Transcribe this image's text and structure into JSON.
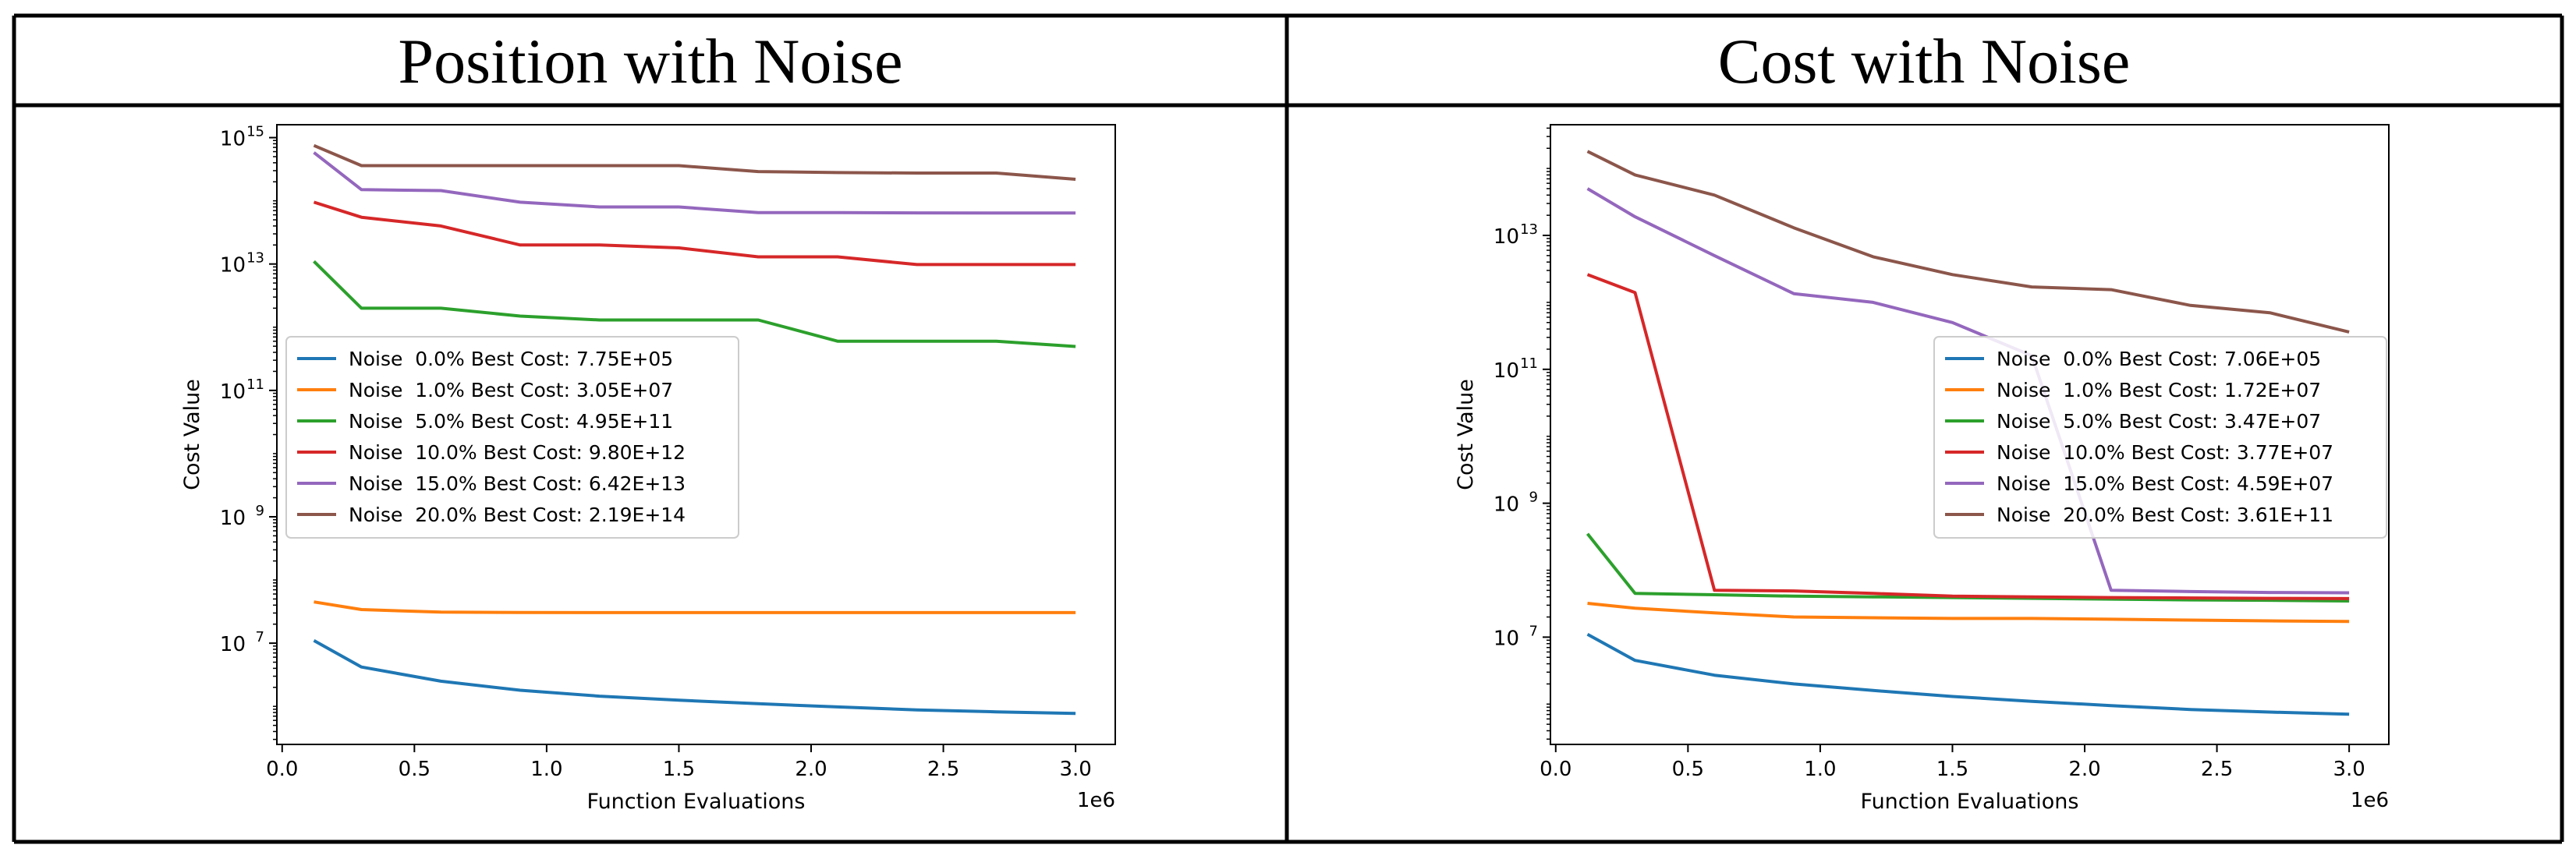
{
  "table": {
    "left_header": "Position with Noise",
    "right_header": "Cost with Noise"
  },
  "chart_data": [
    {
      "type": "line",
      "title": "",
      "header": "Position with Noise",
      "xlabel": "Function Evaluations",
      "ylabel": "Cost Value",
      "x_offset_label": "1e6",
      "yscale": "log",
      "xlim": [
        -0.02,
        3.15
      ],
      "ylim": [
        250000,
        1600000000000000.0
      ],
      "xticks": [
        0.0,
        0.5,
        1.0,
        1.5,
        2.0,
        2.5,
        3.0
      ],
      "xtick_labels": [
        "0.0",
        "0.5",
        "1.0",
        "1.5",
        "2.0",
        "2.5",
        "3.0"
      ],
      "yticks": [
        {
          "value": 10000000.0,
          "base": "10",
          "exp": "7"
        },
        {
          "value": 1000000000.0,
          "base": "10",
          "exp": "9"
        },
        {
          "value": 100000000000.0,
          "base": "10",
          "exp": "11"
        },
        {
          "value": 10000000000000.0,
          "base": "10",
          "exp": "13"
        },
        {
          "value": 1000000000000000.0,
          "base": "10",
          "exp": "15"
        }
      ],
      "legend_position": "center-left",
      "x": [
        0.12,
        0.3,
        0.6,
        0.9,
        1.2,
        1.5,
        1.8,
        2.1,
        2.4,
        2.7,
        3.0
      ],
      "series": [
        {
          "name": "Noise  0.0% Best Cost: 7.75E+05",
          "color": "#1f77b4",
          "values": [
            11000000.0,
            4200000.0,
            2500000.0,
            1800000.0,
            1450000.0,
            1250000.0,
            1100000.0,
            980000.0,
            880000.0,
            820000.0,
            775000.0
          ]
        },
        {
          "name": "Noise  1.0% Best Cost: 3.05E+07",
          "color": "#ff7f0e",
          "values": [
            45000000.0,
            34000000.0,
            31000000.0,
            30600000.0,
            30500000.0,
            30500000.0,
            30500000.0,
            30500000.0,
            30500000.0,
            30500000.0,
            30500000.0
          ]
        },
        {
          "name": "Noise  5.0% Best Cost: 4.95E+11",
          "color": "#2ca02c",
          "values": [
            11000000000000.0,
            2000000000000.0,
            2000000000000.0,
            1500000000000.0,
            1300000000000.0,
            1300000000000.0,
            1300000000000.0,
            600000000000.0,
            600000000000.0,
            600000000000.0,
            495000000000.0
          ]
        },
        {
          "name": "Noise  10.0% Best Cost: 9.80E+12",
          "color": "#d62728",
          "values": [
            95000000000000.0,
            55000000000000.0,
            40000000000000.0,
            20000000000000.0,
            20000000000000.0,
            18000000000000.0,
            13000000000000.0,
            13000000000000.0,
            9800000000000.0,
            9800000000000.0,
            9800000000000.0
          ]
        },
        {
          "name": "Noise  15.0% Best Cost: 6.42E+13",
          "color": "#9467bd",
          "values": [
            580000000000000.0,
            150000000000000.0,
            145000000000000.0,
            95000000000000.0,
            80000000000000.0,
            80000000000000.0,
            65000000000000.0,
            65000000000000.0,
            64500000000000.0,
            64200000000000.0,
            64200000000000.0
          ]
        },
        {
          "name": "Noise  20.0% Best Cost: 2.19E+14",
          "color": "#8c564b",
          "values": [
            750000000000000.0,
            360000000000000.0,
            360000000000000.0,
            360000000000000.0,
            360000000000000.0,
            360000000000000.0,
            290000000000000.0,
            280000000000000.0,
            275000000000000.0,
            275000000000000.0,
            219000000000000.0
          ]
        }
      ]
    },
    {
      "type": "line",
      "title": "",
      "header": "Cost with Noise",
      "xlabel": "Function Evaluations",
      "ylabel": "Cost Value",
      "x_offset_label": "1e6",
      "yscale": "log",
      "xlim": [
        -0.02,
        3.15
      ],
      "ylim": [
        250000,
        450000000000000.0
      ],
      "xticks": [
        0.0,
        0.5,
        1.0,
        1.5,
        2.0,
        2.5,
        3.0
      ],
      "xtick_labels": [
        "0.0",
        "0.5",
        "1.0",
        "1.5",
        "2.0",
        "2.5",
        "3.0"
      ],
      "yticks": [
        {
          "value": 10000000.0,
          "base": "10",
          "exp": "7"
        },
        {
          "value": 1000000000.0,
          "base": "10",
          "exp": "9"
        },
        {
          "value": 100000000000.0,
          "base": "10",
          "exp": "11"
        },
        {
          "value": 10000000000000.0,
          "base": "10",
          "exp": "13"
        }
      ],
      "legend_position": "center-right",
      "x": [
        0.12,
        0.3,
        0.6,
        0.9,
        1.2,
        1.5,
        1.8,
        2.1,
        2.4,
        2.7,
        3.0
      ],
      "series": [
        {
          "name": "Noise  0.0% Best Cost: 7.06E+05",
          "color": "#1f77b4",
          "values": [
            11000000.0,
            4500000.0,
            2700000.0,
            2000000.0,
            1600000.0,
            1300000.0,
            1100000.0,
            950000.0,
            830000.0,
            760000.0,
            706000.0
          ]
        },
        {
          "name": "Noise  1.0% Best Cost: 1.72E+07",
          "color": "#ff7f0e",
          "values": [
            32000000.0,
            27000000.0,
            23000000.0,
            20000000.0,
            19500000.0,
            19000000.0,
            19000000.0,
            18500000.0,
            18000000.0,
            17500000.0,
            17200000.0
          ]
        },
        {
          "name": "Noise  5.0% Best Cost: 3.47E+07",
          "color": "#2ca02c",
          "values": [
            350000000.0,
            45000000.0,
            43000000.0,
            41000000.0,
            40000000.0,
            39000000.0,
            38000000.0,
            37000000.0,
            36000000.0,
            35500000.0,
            34700000.0
          ]
        },
        {
          "name": "Noise  10.0% Best Cost: 3.77E+07",
          "color": "#d62728",
          "values": [
            2600000000000.0,
            1400000000000.0,
            50000000.0,
            49000000.0,
            45000000.0,
            41000000.0,
            40000000.0,
            39000000.0,
            38500000.0,
            38000000.0,
            37700000.0
          ]
        },
        {
          "name": "Noise  15.0% Best Cost: 4.59E+07",
          "color": "#9467bd",
          "values": [
            50000000000000.0,
            19000000000000.0,
            5000000000000.0,
            1350000000000.0,
            1000000000000.0,
            500000000000.0,
            160000000000.0,
            50000000.0,
            48000000.0,
            46500000.0,
            45900000.0
          ]
        },
        {
          "name": "Noise  20.0% Best Cost: 3.61E+11",
          "color": "#8c564b",
          "values": [
            180000000000000.0,
            80000000000000.0,
            40000000000000.0,
            13000000000000.0,
            4800000000000.0,
            2600000000000.0,
            1700000000000.0,
            1550000000000.0,
            900000000000.0,
            700000000000.0,
            361000000000.0
          ]
        }
      ]
    }
  ]
}
